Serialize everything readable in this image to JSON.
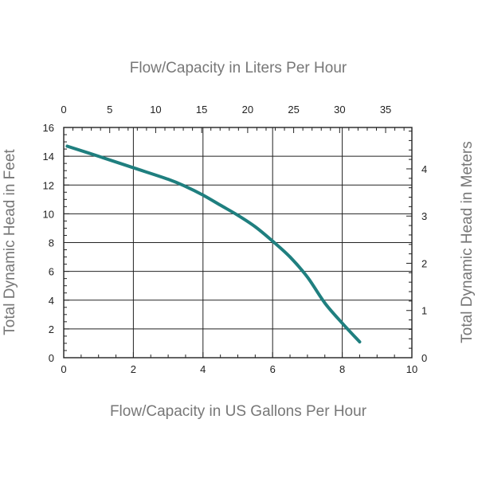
{
  "chart_data": {
    "type": "line",
    "title": "",
    "xlabel": "Flow/Capacity in US Gallons Per Hour",
    "ylabel": "Total Dynamic Head in Feet",
    "x2label": "Flow/Capacity in Liters Per Hour",
    "y2label": "Total Dynamic Head in Meters",
    "xlim": [
      0,
      10
    ],
    "ylim": [
      0,
      16
    ],
    "x_ticks": [
      0,
      2,
      4,
      6,
      8,
      10
    ],
    "y_ticks": [
      0,
      2,
      4,
      6,
      8,
      10,
      12,
      14,
      16
    ],
    "x2_ticks": [
      0,
      5,
      10,
      15,
      20,
      25,
      30,
      35
    ],
    "y2_ticks": [
      0,
      1,
      2,
      3,
      4
    ],
    "grid": true,
    "series": [
      {
        "color": "#1f7f7f",
        "x": [
          0.1,
          1.0,
          2.0,
          3.0,
          3.5,
          4.0,
          4.5,
          5.0,
          5.5,
          6.0,
          6.5,
          7.0,
          7.5,
          8.0,
          8.5
        ],
        "y": [
          14.7,
          14.0,
          13.2,
          12.4,
          11.9,
          11.3,
          10.6,
          9.9,
          9.1,
          8.1,
          7.0,
          5.6,
          3.8,
          2.4,
          1.1
        ]
      }
    ]
  }
}
